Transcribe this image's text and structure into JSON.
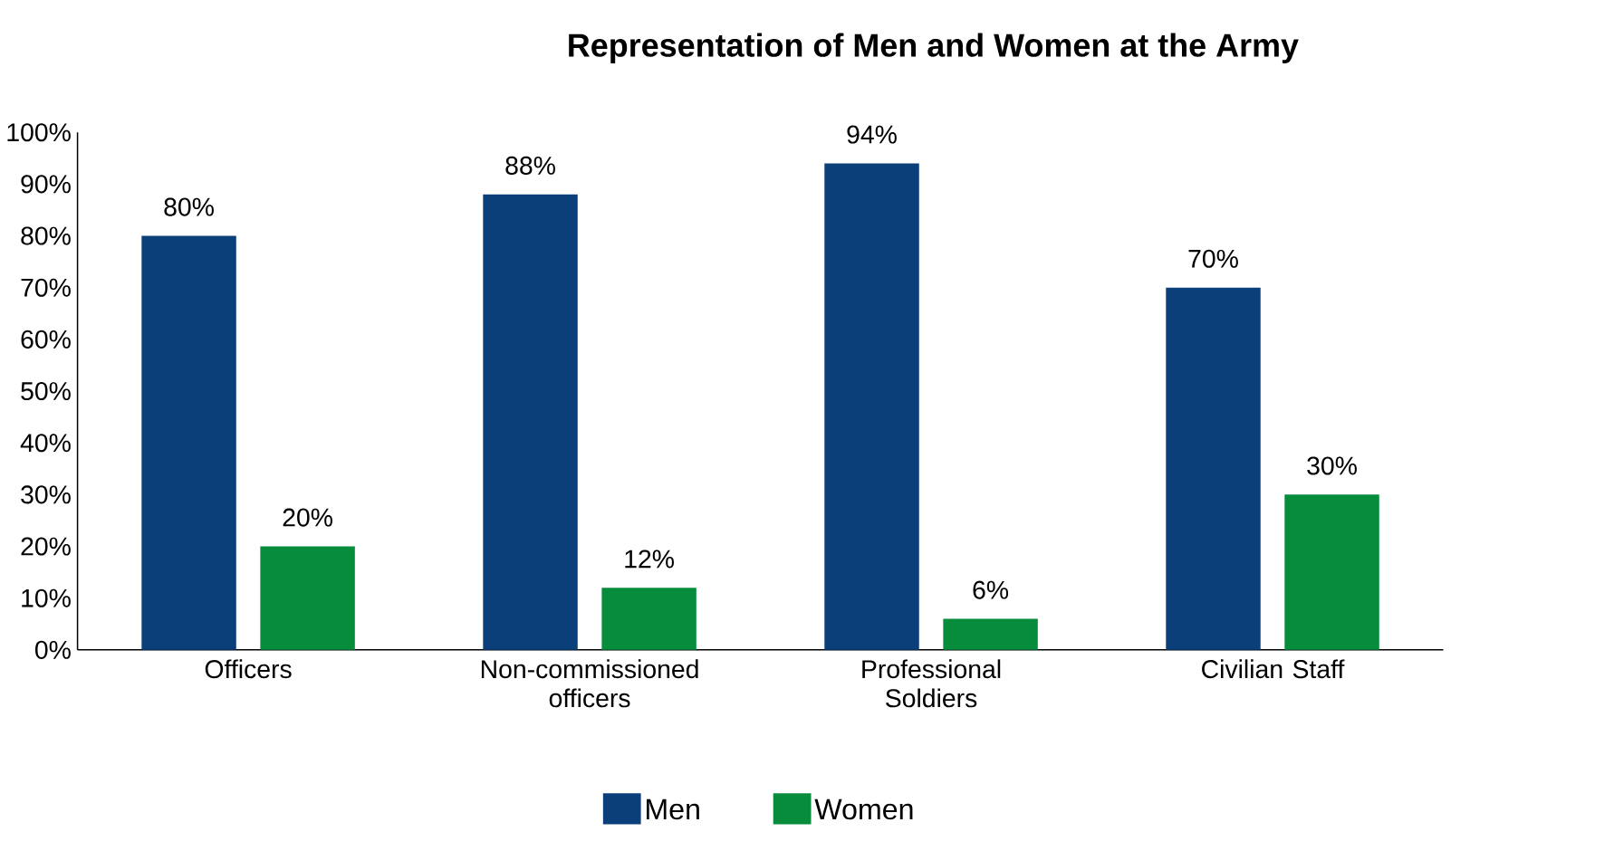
{
  "chart_data": {
    "type": "bar",
    "title": "Representation of Men and Women at the Army",
    "categories": [
      "Officers",
      "Non-commissioned officers",
      "Professional Soldiers",
      "Civilian Staff"
    ],
    "series": [
      {
        "name": "Men",
        "color": "#0b3f7a",
        "values": [
          80,
          88,
          94,
          70
        ],
        "value_labels": [
          "80%",
          "88%",
          "94%",
          "70%"
        ]
      },
      {
        "name": "Women",
        "color": "#078c3c",
        "values": [
          20,
          12,
          6,
          30
        ],
        "value_labels": [
          "20%",
          "12%",
          "6%",
          "30%"
        ]
      }
    ],
    "ylim": [
      0,
      100
    ],
    "yticks": [
      {
        "value": 0,
        "label": "0%"
      },
      {
        "value": 10,
        "label": "10%"
      },
      {
        "value": 20,
        "label": "20%"
      },
      {
        "value": 30,
        "label": "30%"
      },
      {
        "value": 40,
        "label": "40%"
      },
      {
        "value": 50,
        "label": "50%"
      },
      {
        "value": 60,
        "label": "60%"
      },
      {
        "value": 70,
        "label": "70%"
      },
      {
        "value": 80,
        "label": "80%"
      },
      {
        "value": 90,
        "label": "90%"
      },
      {
        "value": 100,
        "label": "100%"
      }
    ],
    "grid": false,
    "legend": "bottom"
  }
}
